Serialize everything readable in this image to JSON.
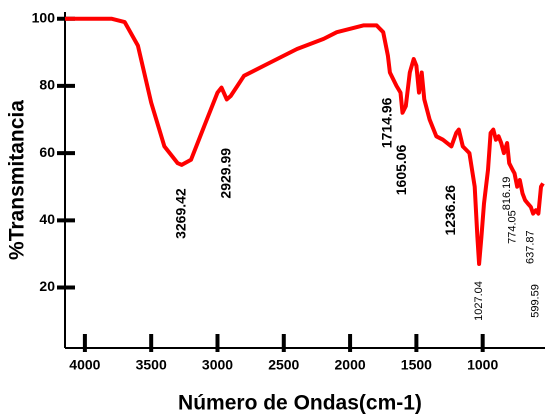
{
  "chart_data": {
    "type": "line",
    "xlabel": "Número de Ondas(cm-1)",
    "ylabel": "%Transmitancia",
    "xlim": [
      4150,
      530
    ],
    "ylim": [
      2,
      102
    ],
    "xticks": [
      4000,
      3500,
      3000,
      2500,
      2000,
      1500,
      1000
    ],
    "yticks": [
      20,
      40,
      60,
      80,
      100
    ],
    "series": [
      {
        "color": "#ff0000",
        "x": [
          4150,
          4000,
          3800,
          3700,
          3600,
          3500,
          3400,
          3300,
          3270,
          3200,
          3100,
          3000,
          2970,
          2930,
          2900,
          2850,
          2800,
          2600,
          2400,
          2200,
          2100,
          2000,
          1900,
          1800,
          1750,
          1715,
          1700,
          1650,
          1620,
          1605,
          1580,
          1550,
          1520,
          1500,
          1480,
          1460,
          1440,
          1400,
          1350,
          1300,
          1236,
          1200,
          1180,
          1150,
          1100,
          1060,
          1040,
          1027,
          1010,
          990,
          960,
          940,
          920,
          900,
          880,
          860,
          840,
          816,
          800,
          774,
          760,
          740,
          720,
          700,
          680,
          660,
          637,
          620,
          599,
          580,
          560,
          545
        ],
        "values": [
          100,
          100,
          100,
          99,
          92,
          75,
          62,
          57,
          56.5,
          58,
          68,
          78,
          79.5,
          76,
          77,
          80,
          83,
          87,
          91,
          94,
          96,
          97,
          98,
          98,
          96,
          89,
          84,
          80,
          78,
          72,
          74,
          84,
          88,
          86,
          78,
          84,
          76,
          70,
          65,
          64,
          62,
          66,
          67,
          62,
          60,
          50,
          35,
          27,
          35,
          45,
          55,
          66,
          67,
          64,
          65,
          63,
          60,
          63,
          57,
          55,
          54,
          50,
          52,
          48,
          46,
          45,
          44,
          42,
          43,
          42,
          50,
          51
        ]
      }
    ],
    "annotations": [
      {
        "text": "3269.42",
        "x": 3269.42,
        "y": 42
      },
      {
        "text": "2929.99",
        "x": 2929.99,
        "y": 54
      },
      {
        "text": "1714.96",
        "x": 1714.96,
        "y": 69
      },
      {
        "text": "1605.06",
        "x": 1605.06,
        "y": 55
      },
      {
        "text": "1236.26",
        "x": 1236.26,
        "y": 43
      },
      {
        "text": "1027.04",
        "x": 1027.04,
        "y": 16
      },
      {
        "text": "816.19",
        "x": 816.19,
        "y": 48
      },
      {
        "text": "774.05",
        "x": 774.05,
        "y": 38
      },
      {
        "text": "637.87",
        "x": 637.87,
        "y": 32
      },
      {
        "text": "599.59",
        "x": 599.59,
        "y": 16
      }
    ]
  }
}
